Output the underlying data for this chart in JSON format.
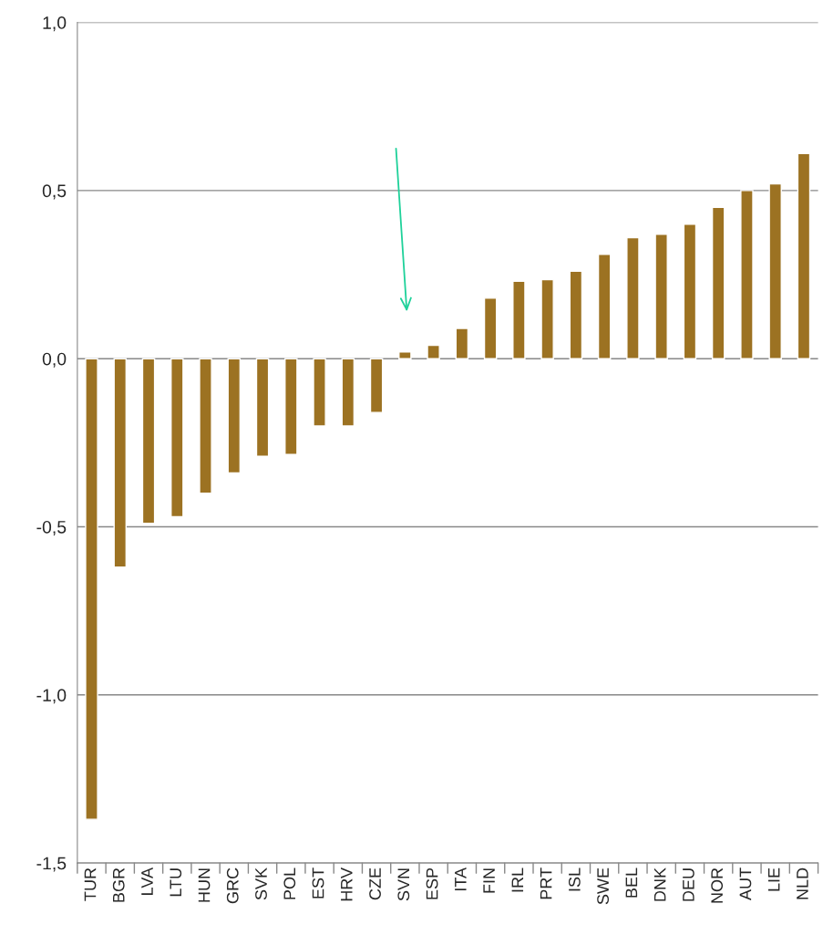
{
  "chart_data": {
    "type": "bar",
    "categories": [
      "TUR",
      "BGR",
      "LVA",
      "LTU",
      "HUN",
      "GRC",
      "SVK",
      "POL",
      "EST",
      "HRV",
      "CZE",
      "SVN",
      "ESP",
      "ITA",
      "FIN",
      "IRL",
      "PRT",
      "ISL",
      "SWE",
      "BEL",
      "DNK",
      "DEU",
      "NOR",
      "AUT",
      "LIE",
      "NLD"
    ],
    "values": [
      -1.37,
      -0.62,
      -0.49,
      -0.47,
      -0.4,
      -0.34,
      -0.29,
      -0.285,
      -0.2,
      -0.2,
      -0.16,
      0.02,
      0.04,
      0.09,
      0.18,
      0.23,
      0.235,
      0.26,
      0.31,
      0.36,
      0.37,
      0.4,
      0.45,
      0.5,
      0.52,
      0.61
    ],
    "color": "#9c7222",
    "ylim": [
      -1.5,
      1.0
    ],
    "yticks": [
      {
        "value": -1.5,
        "label": "-1,5"
      },
      {
        "value": -1.0,
        "label": "-1,0"
      },
      {
        "value": -0.5,
        "label": "-0,5"
      },
      {
        "value": 0.0,
        "label": "0,0"
      },
      {
        "value": 0.5,
        "label": "0,5"
      },
      {
        "value": 1.0,
        "label": "1,0"
      }
    ],
    "grid": "y"
  }
}
